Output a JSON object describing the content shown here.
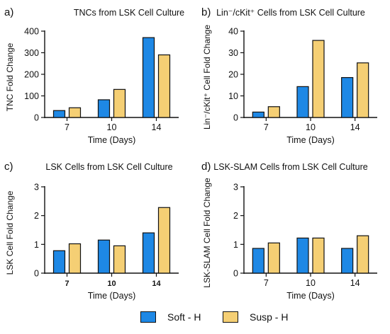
{
  "colors": {
    "soft": "#1e88e5",
    "susp": "#f5cf74",
    "axis": "#111111"
  },
  "legend": [
    {
      "name": "Soft - H",
      "color": "#1e88e5"
    },
    {
      "name": "Susp - H",
      "color": "#f5cf74"
    }
  ],
  "chart_data": [
    {
      "panel_label": "a)",
      "type": "bar",
      "title": "TNCs from LSK Cell Culture",
      "xlabel": "Time (Days)",
      "ylabel": "TNC Fold Change",
      "categories": [
        "7",
        "10",
        "14"
      ],
      "ylim": [
        0,
        400
      ],
      "yticks": [
        0,
        100,
        200,
        300,
        400
      ],
      "series": [
        {
          "name": "Soft - H",
          "values": [
            32,
            82,
            370
          ]
        },
        {
          "name": "Susp - H",
          "values": [
            45,
            130,
            290
          ]
        }
      ]
    },
    {
      "panel_label": "b)",
      "type": "bar",
      "title": "Lin⁻/cKit⁺ Cells from LSK Cell Culture",
      "xlabel": "Time (Days)",
      "ylabel": "Lin⁻/cKit⁺ Cell Fold Change",
      "categories": [
        "7",
        "10",
        "14"
      ],
      "ylim": [
        0,
        40
      ],
      "yticks": [
        0,
        10,
        20,
        30,
        40
      ],
      "series": [
        {
          "name": "Soft - H",
          "values": [
            2.5,
            14.3,
            18.5
          ]
        },
        {
          "name": "Susp - H",
          "values": [
            5.0,
            35.7,
            25.3
          ]
        }
      ]
    },
    {
      "panel_label": "c)",
      "type": "bar",
      "title": "LSK Cells from LSK Cell Culture",
      "xlabel": "Time (Days)",
      "ylabel": "LSK Cell Fold Change",
      "categories": [
        "7",
        "10",
        "14"
      ],
      "ylim": [
        0,
        3
      ],
      "yticks": [
        0,
        1,
        2,
        3
      ],
      "series": [
        {
          "name": "Soft - H",
          "values": [
            0.78,
            1.15,
            1.4
          ]
        },
        {
          "name": "Susp - H",
          "values": [
            1.02,
            0.95,
            2.28
          ]
        }
      ]
    },
    {
      "panel_label": "d)",
      "type": "bar",
      "title": "LSK-SLAM Cells from LSK Cell Culture",
      "xlabel": "Time (Days)",
      "ylabel": "LSK-SLAM Cell Fold Change",
      "categories": [
        "7",
        "10",
        "14"
      ],
      "ylim": [
        0,
        3
      ],
      "yticks": [
        0,
        1,
        2,
        3
      ],
      "series": [
        {
          "name": "Soft - H",
          "values": [
            0.86,
            1.22,
            0.86
          ]
        },
        {
          "name": "Susp - H",
          "values": [
            1.05,
            1.22,
            1.3
          ]
        }
      ]
    }
  ]
}
